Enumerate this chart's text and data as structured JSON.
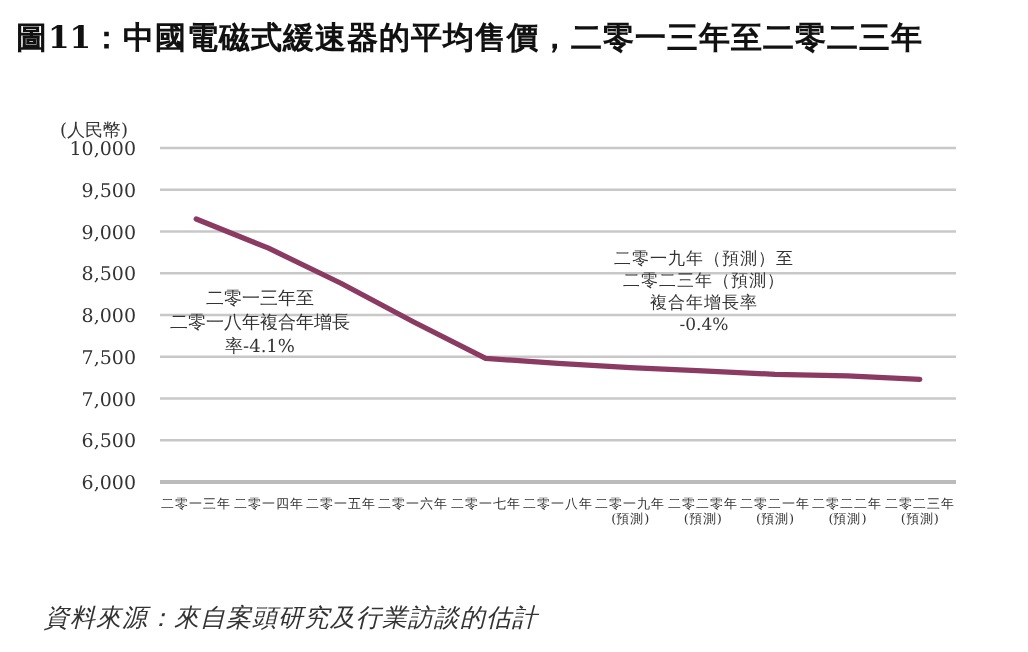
{
  "chart_data": {
    "type": "line",
    "title": "圖11：中國電磁式緩速器的平均售價，二零一三年至二零二三年",
    "ylabel": "(人民幣)",
    "categories": [
      "二零一三年",
      "二零一四年",
      "二零一五年",
      "二零一六年",
      "二零一七年",
      "二零一八年",
      "二零一九年\n(預測)",
      "二零二零年\n(預測)",
      "二零二一年\n(預測)",
      "二零二二年\n(預測)",
      "二零二三年\n(預測)"
    ],
    "series": [
      {
        "color": "#8b3a62",
        "values": [
          9150,
          8800,
          8380,
          7920,
          7480,
          7420,
          7370,
          7330,
          7290,
          7270,
          7230
        ]
      }
    ],
    "ylim": [
      6000,
      10000
    ],
    "yticks": [
      {
        "value": 6000,
        "label": "6,000"
      },
      {
        "value": 6500,
        "label": "6,500"
      },
      {
        "value": 7000,
        "label": "7,000"
      },
      {
        "value": 7500,
        "label": "7,500"
      },
      {
        "value": 8000,
        "label": "8,000"
      },
      {
        "value": 8500,
        "label": "8,500"
      },
      {
        "value": 9000,
        "label": "9,000"
      },
      {
        "value": 9500,
        "label": "9,500"
      },
      {
        "value": 10000,
        "label": "10,000"
      }
    ],
    "grid": "y",
    "marker": "none",
    "line_style": "solid",
    "annotations": [
      "二零一三年至",
      "二零一八年複合年增長",
      "率-4.1%",
      "二零一九年（預測）至",
      "二零二三年（預測）",
      "複合年增長率",
      "-0.4%",
      "資料來源：來自案頭研究及行業訪談的估計"
    ]
  }
}
